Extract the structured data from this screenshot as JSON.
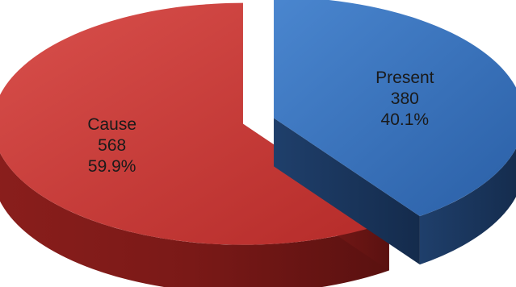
{
  "chart_data": {
    "type": "pie",
    "style": "3d-exploded",
    "title": "",
    "series": [
      {
        "label": "Present",
        "value": 380,
        "percent": "40.1%",
        "color": "#2E6DB4",
        "value_text": "380"
      },
      {
        "label": "Cause",
        "value": 568,
        "percent": "59.9%",
        "color": "#BE3330",
        "value_text": "568"
      }
    ],
    "legend": "none",
    "data_labels": "category-value-percent"
  }
}
